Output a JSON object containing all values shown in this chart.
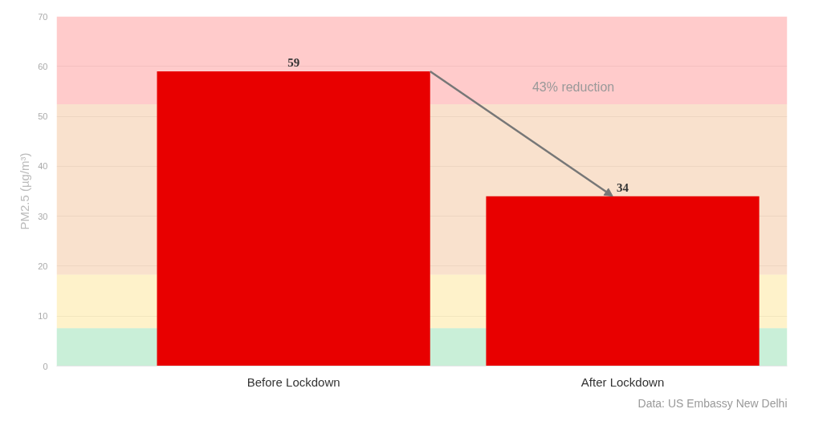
{
  "chart_data": {
    "type": "bar",
    "categories": [
      "Before Lockdown",
      "After Lockdown"
    ],
    "values": [
      59,
      34
    ],
    "color": "#e80000",
    "ylabel": "PM2.5 (µg/m³)",
    "ylim": [
      0,
      70
    ],
    "yticks": [
      0,
      10,
      20,
      30,
      40,
      50,
      60,
      70
    ],
    "grid": "y",
    "data_labels": true,
    "bands": [
      {
        "axis": "y",
        "from": 0,
        "to": 7.6,
        "color": "#4cc97f"
      },
      {
        "axis": "y",
        "from": 7.6,
        "to": 18.3,
        "color": "#fdd54f"
      },
      {
        "axis": "y",
        "from": 18.3,
        "to": 52.4,
        "color": "#ec9a5a"
      },
      {
        "axis": "y",
        "from": 52.4,
        "to": 70,
        "color": "#fe5252"
      }
    ],
    "annotations": [
      "43% reduction",
      "Data: US Embassy New Delhi"
    ]
  }
}
